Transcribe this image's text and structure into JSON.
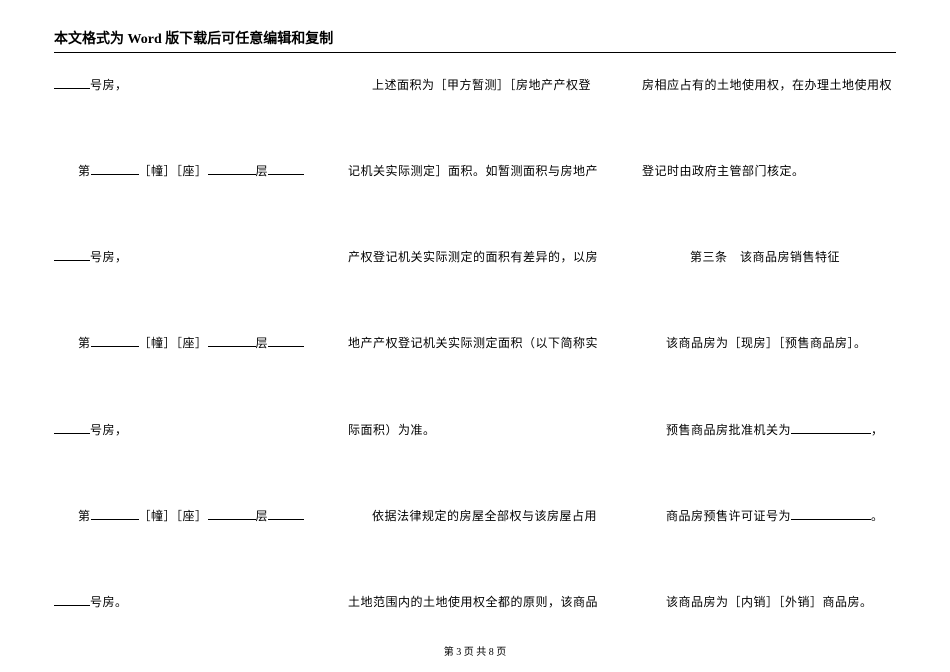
{
  "header": "本文格式为 Word 版下载后可任意编辑和复制",
  "footer": "第 3 页 共 8 页",
  "col1": {
    "r1": "号房，",
    "r2a": "第",
    "r2b": "［幢］［座］",
    "r2c": "层",
    "r3": "号房，",
    "r4a": "第",
    "r4b": "［幢］［座］",
    "r4c": "层",
    "r5": "号房，",
    "r6a": "第",
    "r6b": "［幢］［座］",
    "r6c": "层",
    "r7": "号房。"
  },
  "col2": {
    "r1": "上述面积为［甲方暂测］［房地产产权登",
    "r2": "记机关实际测定］面积。如暂测面积与房地产",
    "r3": "产权登记机关实际测定的面积有差异的，以房",
    "r4": "地产产权登记机关实际测定面积（以下简称实",
    "r5": "际面积）为准。",
    "r6": "依据法律规定的房屋全部权与该房屋占用",
    "r7": "土地范围内的土地使用权全都的原则，该商品"
  },
  "col3": {
    "r1": "房相应占有的土地使用权，在办理土地使用权",
    "r2": "登记时由政府主管部门核定。",
    "r3": "第三条　该商品房销售特征",
    "r4": "该商品房为［现房］［预售商品房］。",
    "r5a": "预售商品房批准机关为",
    "r5b": "，",
    "r6a": "商品房预售许可证号为",
    "r6b": "。",
    "r7": "该商品房为［内销］［外销］商品房。"
  }
}
